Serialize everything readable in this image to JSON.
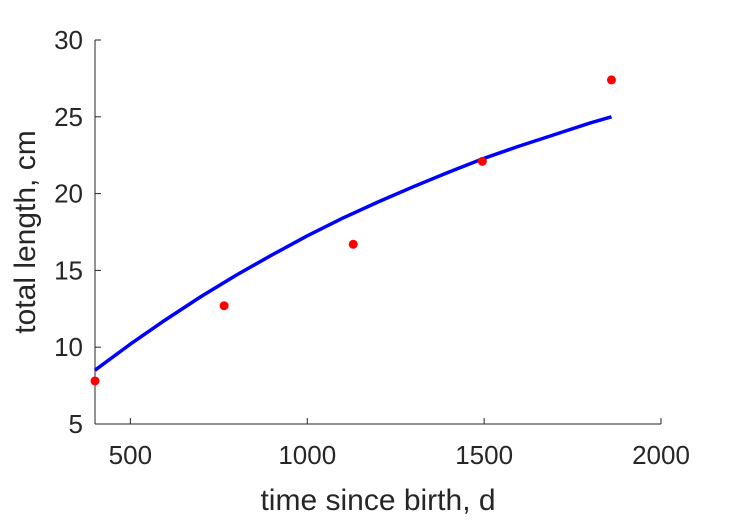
{
  "chart_data": {
    "type": "scatter",
    "title": "",
    "xlabel": "time since birth, d",
    "ylabel": "total length, cm",
    "xlim": [
      400,
      2000
    ],
    "ylim": [
      5,
      30
    ],
    "xticks": [
      500,
      1000,
      1500,
      2000
    ],
    "yticks": [
      5,
      10,
      15,
      20,
      25,
      30
    ],
    "grid": false,
    "legend": "none",
    "series": [
      {
        "kind": "points",
        "color": "#ff0000",
        "x": [
          400,
          765,
          1130,
          1495,
          1860
        ],
        "y": [
          7.8,
          12.7,
          16.7,
          22.1,
          27.4
        ]
      },
      {
        "kind": "line",
        "color": "#0000ff",
        "x": [
          400,
          500,
          600,
          700,
          800,
          900,
          1000,
          1100,
          1200,
          1300,
          1400,
          1500,
          1600,
          1700,
          1800,
          1860
        ],
        "y": [
          8.5,
          10.2,
          11.8,
          13.3,
          14.7,
          16.0,
          17.25,
          18.4,
          19.45,
          20.45,
          21.4,
          22.3,
          23.1,
          23.85,
          24.6,
          25.0
        ]
      }
    ]
  }
}
